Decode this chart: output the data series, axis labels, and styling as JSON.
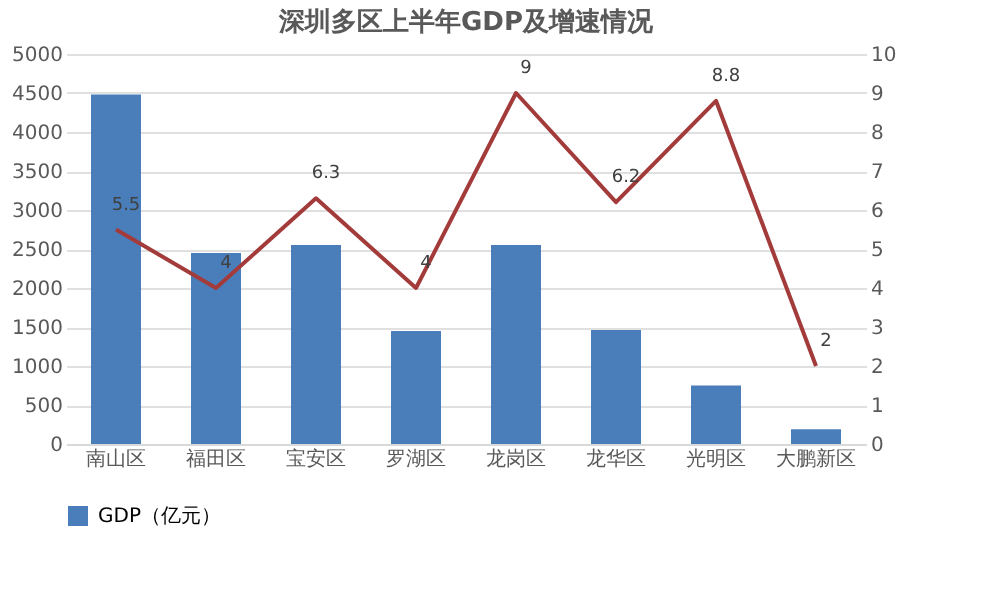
{
  "chart_data": {
    "type": "bar",
    "title": "深圳多区上半年GDP及增速情况",
    "categories": [
      "南山区",
      "福田区",
      "宝安区",
      "罗湖区",
      "龙岗区",
      "龙华区",
      "光明区",
      "大鹏新区"
    ],
    "series": [
      {
        "name": "GDP（亿元）",
        "color": "#4a7ebb",
        "values": [
          4480,
          2450,
          2550,
          1450,
          2550,
          1460,
          750,
          190
        ]
      },
      {
        "type": "line",
        "axis": "y2",
        "color": "#a33b3b",
        "values": [
          5.5,
          4,
          6.3,
          4,
          9,
          6.2,
          8.8,
          2
        ],
        "value_labels": [
          "5.5",
          "4",
          "6.3",
          "4",
          "9",
          "6.2",
          "8.8",
          "2"
        ]
      }
    ],
    "ylim": [
      0,
      5000
    ],
    "yticks": [
      0,
      500,
      1000,
      1500,
      2000,
      2500,
      3000,
      3500,
      4000,
      4500,
      5000
    ],
    "y2lim": [
      0,
      10
    ],
    "y2ticks": [
      0,
      1,
      2,
      3,
      4,
      5,
      6,
      7,
      8,
      9,
      10
    ],
    "grid": "y",
    "legend": "bottom",
    "marker": "none",
    "line_style": "solid"
  }
}
